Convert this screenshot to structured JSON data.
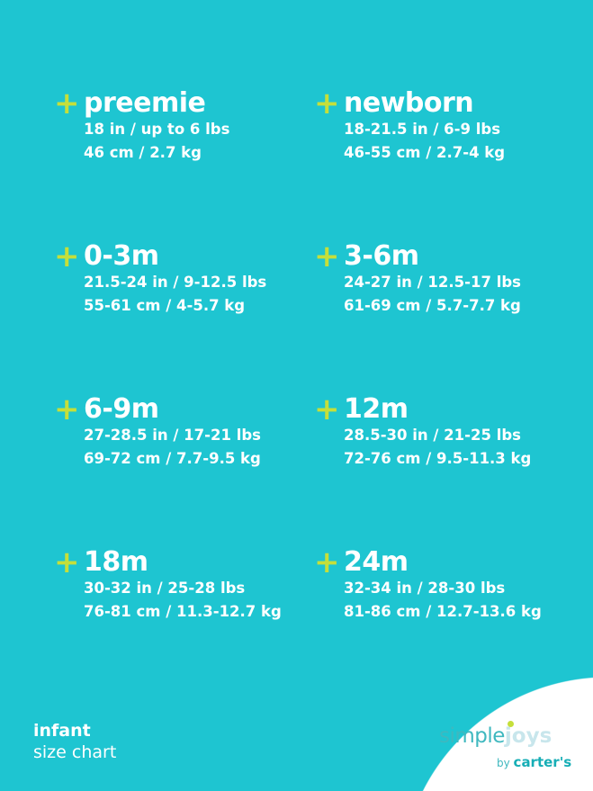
{
  "sizes": [
    {
      "title": "preemie",
      "imperial": "18 in / up to 6 lbs",
      "metric": "46 cm / 2.7 kg"
    },
    {
      "title": "newborn",
      "imperial": "18-21.5 in / 6-9 lbs",
      "metric": "46-55 cm / 2.7-4 kg"
    },
    {
      "title": "0-3m",
      "imperial": "21.5-24 in / 9-12.5 lbs",
      "metric": "55-61 cm / 4-5.7 kg"
    },
    {
      "title": "3-6m",
      "imperial": "24-27 in / 12.5-17 lbs",
      "metric": "61-69 cm / 5.7-7.7 kg"
    },
    {
      "title": "6-9m",
      "imperial": "27-28.5 in / 17-21 lbs",
      "metric": "69-72 cm / 7.7-9.5 kg"
    },
    {
      "title": "12m",
      "imperial": "28.5-30 in / 21-25 lbs",
      "metric": "72-76 cm / 9.5-11.3 kg"
    },
    {
      "title": "18m",
      "imperial": "30-32 in / 25-28 lbs",
      "metric": "76-81 cm / 11.3-12.7 kg"
    },
    {
      "title": "24m",
      "imperial": "32-34 in / 28-30 lbs",
      "metric": "81-86 cm / 12.7-13.6 kg"
    }
  ],
  "plus_icon": "+",
  "caption": {
    "line1": "infant",
    "line2": "size chart"
  },
  "logo": {
    "simple": "simple",
    "joys": "joys",
    "by": "by",
    "brand": "carter's"
  },
  "colors": {
    "background": "#1ec5d1",
    "accent": "#c5df3a"
  }
}
